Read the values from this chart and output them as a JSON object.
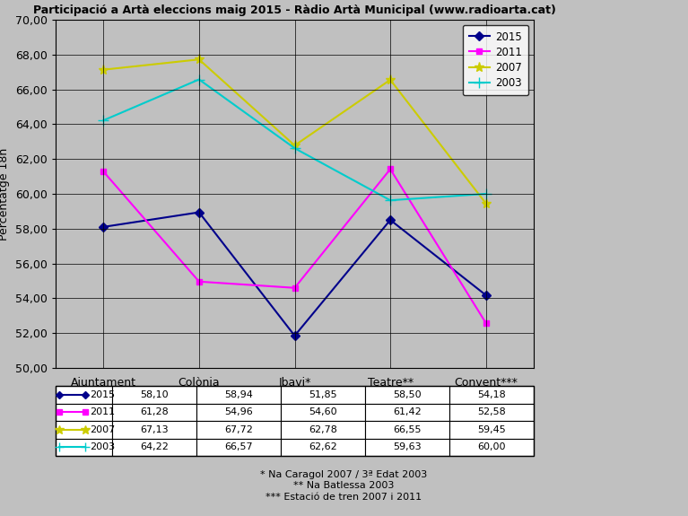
{
  "title": "Participació a Artà eleccions maig 2015 - Ràdio Artà Municipal (www.radioarta.cat)",
  "ylabel": "Percentatge 18h",
  "categories": [
    "Ajuntament",
    "Colònia",
    "Ibavi*",
    "Teatre**",
    "Convent***"
  ],
  "series": {
    "2015": [
      58.1,
      58.94,
      51.85,
      58.5,
      54.18
    ],
    "2011": [
      61.28,
      54.96,
      54.6,
      61.42,
      52.58
    ],
    "2007": [
      67.13,
      67.72,
      62.78,
      66.55,
      59.45
    ],
    "2003": [
      64.22,
      66.57,
      62.62,
      59.63,
      60.0
    ]
  },
  "colors": {
    "2015": "#00008B",
    "2011": "#FF00FF",
    "2007": "#CCCC00",
    "2003": "#00CCCC"
  },
  "markers": {
    "2015": "D",
    "2011": "s",
    "2007": "*",
    "2003": "+"
  },
  "marker_sizes": {
    "2015": 5,
    "2011": 5,
    "2007": 8,
    "2003": 8
  },
  "ylim": [
    50.0,
    70.0
  ],
  "yticks": [
    50.0,
    52.0,
    54.0,
    56.0,
    58.0,
    60.0,
    62.0,
    64.0,
    66.0,
    68.0,
    70.0
  ],
  "background_color": "#C0C0C0",
  "plot_bg_color": "#C0C0C0",
  "grid_color": "#000000",
  "table_data": [
    [
      "2015",
      "58,10",
      "58,94",
      "51,85",
      "58,50",
      "54,18"
    ],
    [
      "2011",
      "61,28",
      "54,96",
      "54,60",
      "61,42",
      "52,58"
    ],
    [
      "2007",
      "67,13",
      "67,72",
      "62,78",
      "66,55",
      "59,45"
    ],
    [
      "2003",
      "64,22",
      "66,57",
      "62,62",
      "59,63",
      "60,00"
    ]
  ],
  "footnotes": [
    "* Na Caragol 2007 / 3ª Edat 2003",
    "** Na Batlessa 2003",
    "*** Estació de tren 2007 i 2011"
  ],
  "series_order": [
    "2015",
    "2011",
    "2007",
    "2003"
  ]
}
